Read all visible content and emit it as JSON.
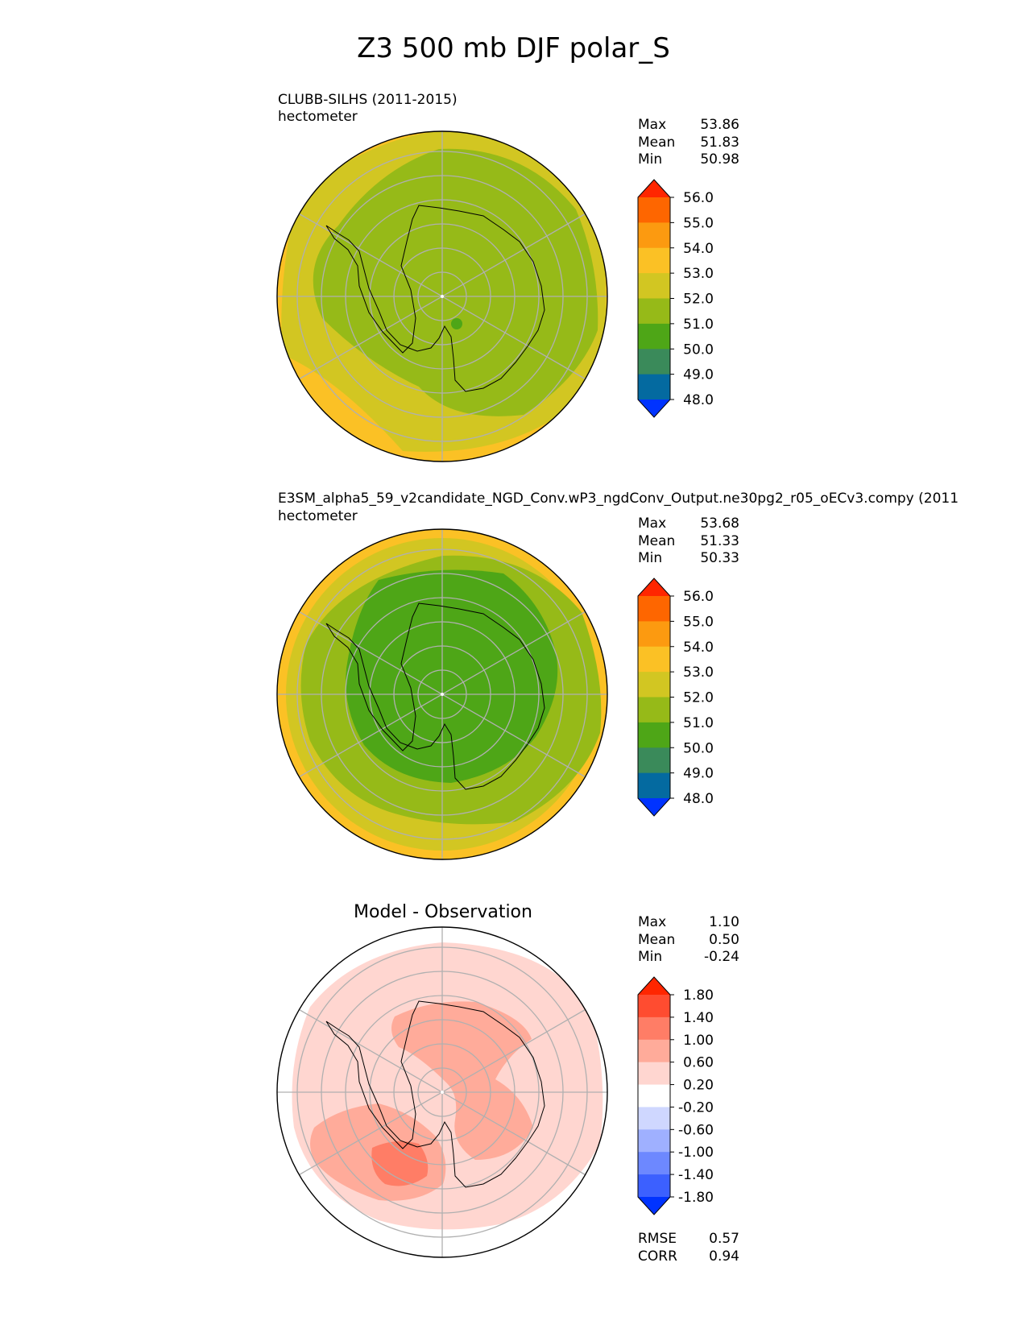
{
  "title": "Z3 500 mb DJF polar_S",
  "panels": [
    {
      "title": "CLUBB-SILHS (2011-2015)",
      "units": "hectometer",
      "stats": [
        {
          "label": "Max",
          "value": "53.86"
        },
        {
          "label": "Mean",
          "value": "51.83"
        },
        {
          "label": "Min",
          "value": "50.98"
        }
      ],
      "colorbar": {
        "ticks": [
          "56.0",
          "55.0",
          "54.0",
          "53.0",
          "52.0",
          "51.0",
          "50.0",
          "49.0",
          "48.0"
        ],
        "colors": [
          "#ff2600",
          "#fe6600",
          "#fc9a10",
          "#fbc125",
          "#d2c622",
          "#96ba18",
          "#4ea617",
          "#3a8a5a",
          "#046aa0",
          "#0033ff"
        ]
      }
    },
    {
      "title": "E3SM_alpha5_59_v2candidate_NGD_Conv.wP3_ngdConv_Output.ne30pg2_r05_oECv3.compy (2011",
      "units": "hectometer",
      "stats": [
        {
          "label": "Max",
          "value": "53.68"
        },
        {
          "label": "Mean",
          "value": "51.33"
        },
        {
          "label": "Min",
          "value": "50.33"
        }
      ],
      "colorbar": {
        "ticks": [
          "56.0",
          "55.0",
          "54.0",
          "53.0",
          "52.0",
          "51.0",
          "50.0",
          "49.0",
          "48.0"
        ],
        "colors": [
          "#ff2600",
          "#fe6600",
          "#fc9a10",
          "#fbc125",
          "#d2c622",
          "#96ba18",
          "#4ea617",
          "#3a8a5a",
          "#046aa0",
          "#0033ff"
        ]
      }
    },
    {
      "title": "Model - Observation",
      "stats": [
        {
          "label": "Max",
          "value": "1.10"
        },
        {
          "label": "Mean",
          "value": "0.50"
        },
        {
          "label": "Min",
          "value": "-0.24"
        }
      ],
      "colorbar": {
        "ticks": [
          "1.80",
          "1.40",
          "1.00",
          "0.60",
          "0.20",
          "-0.20",
          "-0.60",
          "-1.00",
          "-1.40",
          "-1.80"
        ],
        "colors": [
          "#ff2600",
          "#ff4c30",
          "#ff7d66",
          "#ffab9a",
          "#ffd6d0",
          "#ffffff",
          "#cfd7ff",
          "#9fb0ff",
          "#6d88ff",
          "#3c60ff",
          "#0033ff"
        ]
      },
      "metrics": [
        {
          "label": "RMSE",
          "value": "0.57"
        },
        {
          "label": "CORR",
          "value": "0.94"
        }
      ]
    }
  ],
  "chart_data": [
    {
      "type": "heatmap",
      "projection": "polar_S",
      "title": "CLUBB-SILHS (2011-2015)",
      "units": "hectometer",
      "levels": [
        48,
        49,
        50,
        51,
        52,
        53,
        54,
        55,
        56
      ],
      "max": 53.86,
      "mean": 51.83,
      "min": 50.98
    },
    {
      "type": "heatmap",
      "projection": "polar_S",
      "title": "E3SM_alpha5_59_v2candidate_NGD_Conv.wP3_ngdConv_Output.ne30pg2_r05_oECv3.compy (2011",
      "units": "hectometer",
      "levels": [
        48,
        49,
        50,
        51,
        52,
        53,
        54,
        55,
        56
      ],
      "max": 53.68,
      "mean": 51.33,
      "min": 50.33
    },
    {
      "type": "heatmap",
      "projection": "polar_S",
      "title": "Model - Observation",
      "levels": [
        -1.8,
        -1.4,
        -1.0,
        -0.6,
        -0.2,
        0.2,
        0.6,
        1.0,
        1.4,
        1.8
      ],
      "max": 1.1,
      "mean": 0.5,
      "min": -0.24,
      "rmse": 0.57,
      "corr": 0.94
    }
  ]
}
